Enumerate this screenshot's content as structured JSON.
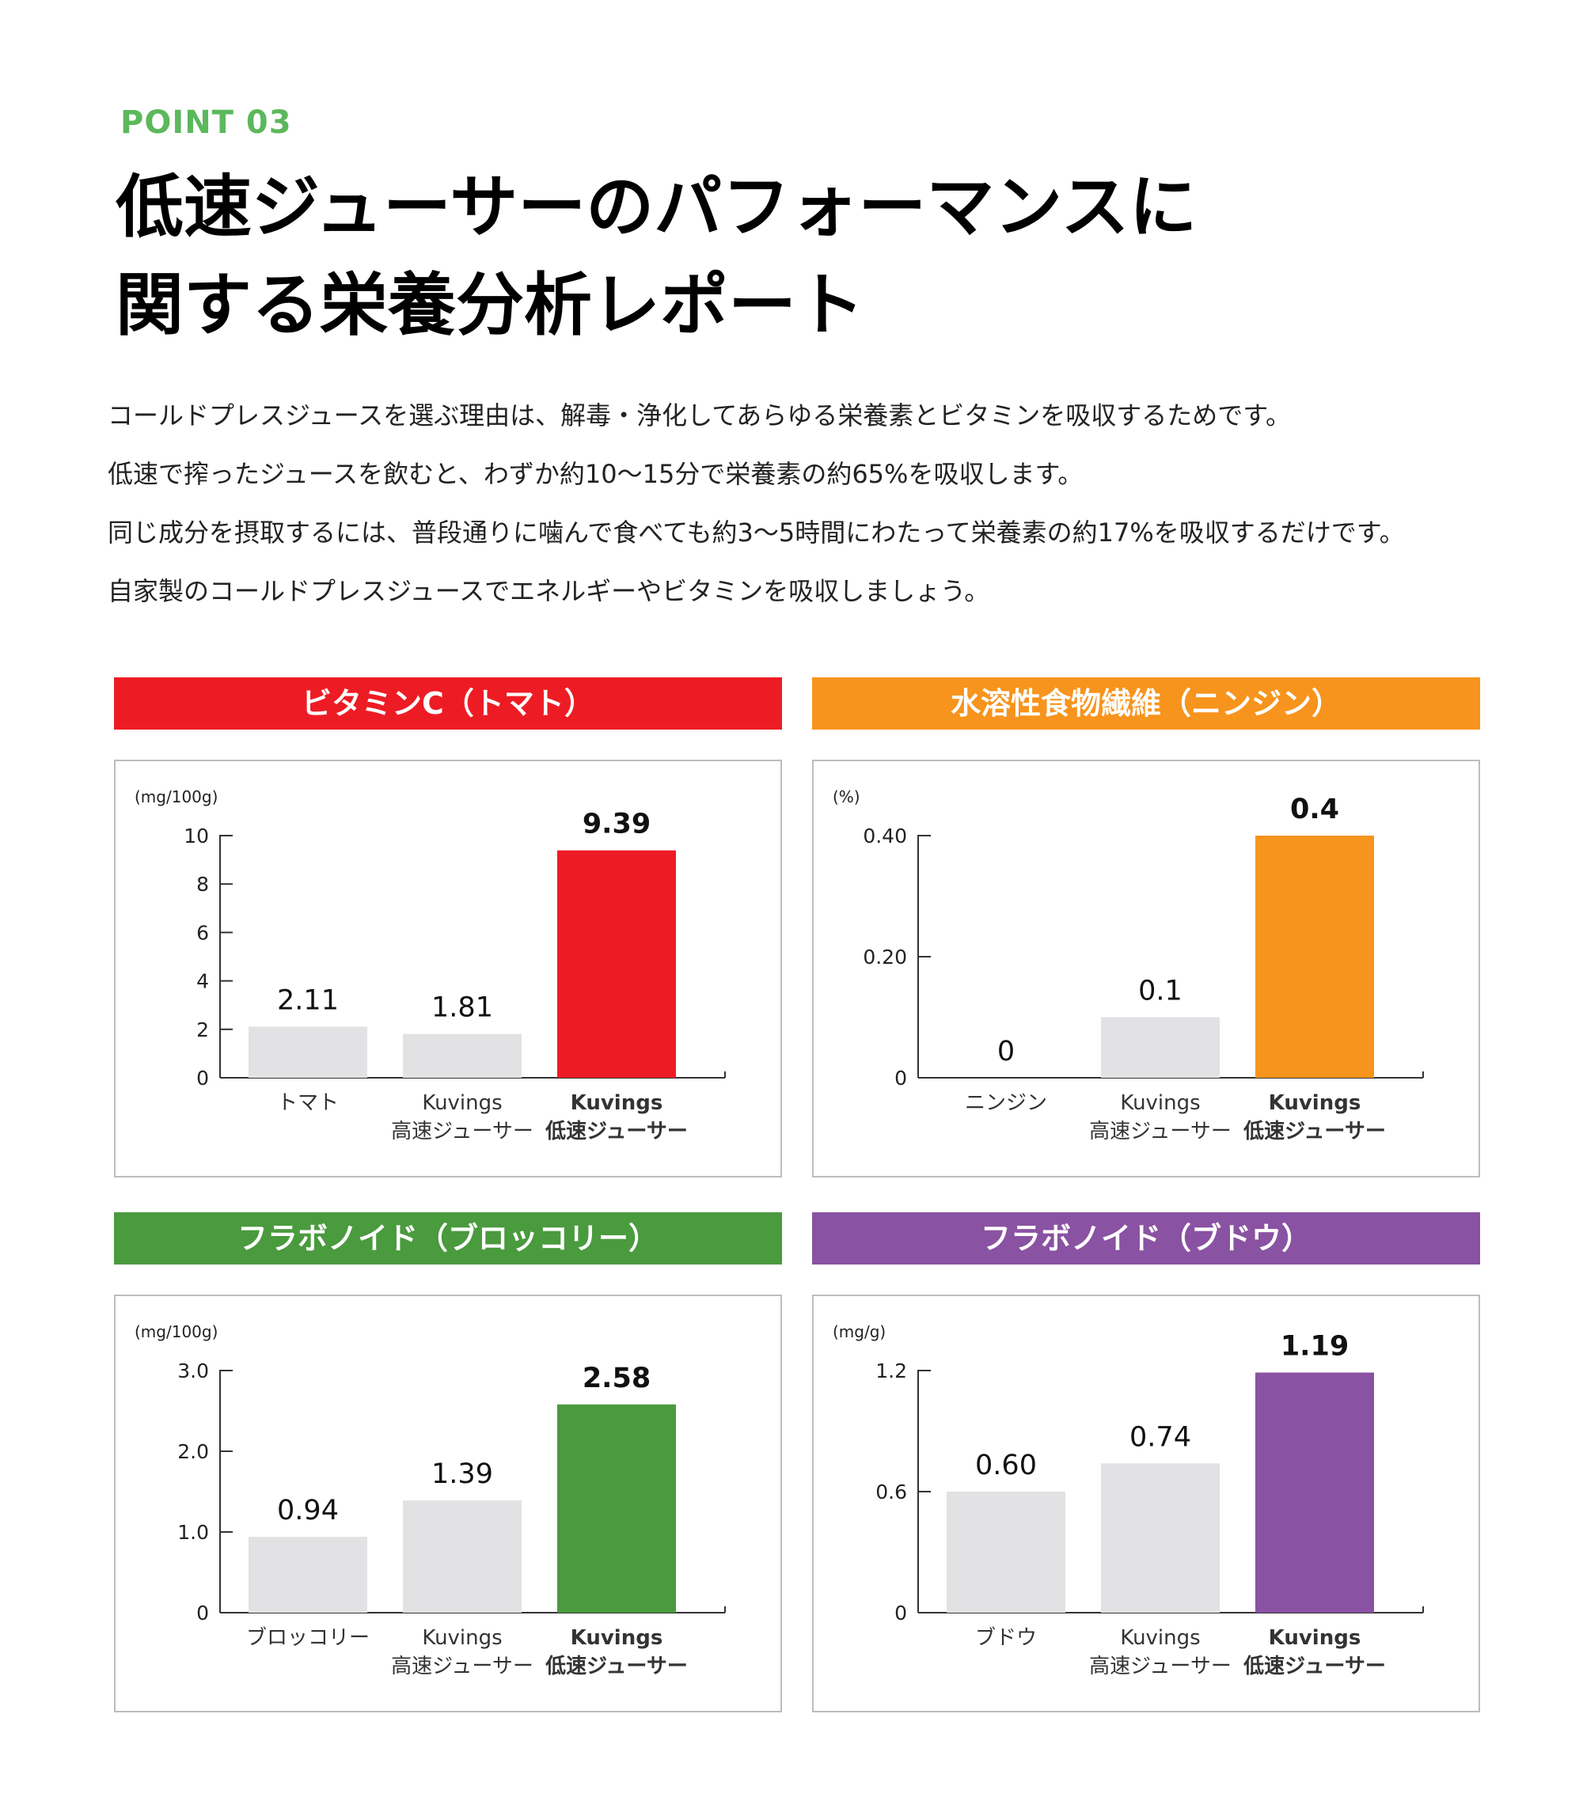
{
  "header": {
    "point": "POINT 03",
    "title_lines": [
      "低速ジューサーのパフォーマンスに",
      "関する栄養分析レポート"
    ]
  },
  "intro": [
    "コールドプレスジュースを選ぶ理由は、解毒・浄化してあらゆる栄養素とビタミンを吸収するためです。",
    "低速で搾ったジュースを飲むと、わずか約10〜15分で栄養素の約65%を吸収します。",
    "同じ成分を摂取するには、普段通りに噛んで食べても約3〜5時間にわたって栄養素の約17%を吸収するだけです。",
    "自家製のコールドプレスジュースでエネルギーやビタミンを吸収しましょう。"
  ],
  "colors": {
    "red": "#ed1c24",
    "orange": "#f7941d",
    "green": "#4a9a3e",
    "purple": "#8a52a2",
    "gray_bar": "#e2e2e4",
    "point_green": "#5cb85c"
  },
  "chart_data": [
    {
      "type": "bar",
      "title": "ビタミンC（トマト）",
      "unit": "(mg/100g)",
      "categories": [
        [
          "トマト"
        ],
        [
          "Kuvings",
          "高速ジューサー"
        ],
        [
          "Kuvings",
          "低速ジューサー"
        ]
      ],
      "values": [
        2.11,
        1.81,
        9.39
      ],
      "value_labels": [
        "2.11",
        "1.81",
        "9.39"
      ],
      "ylim": [
        0,
        10
      ],
      "ticks": [
        0,
        2,
        4,
        6,
        8,
        10
      ],
      "tick_labels": [
        "0",
        "2",
        "4",
        "6",
        "8",
        "10"
      ],
      "accent": "#ed1c24",
      "highlight_index": 2
    },
    {
      "type": "bar",
      "title": "水溶性食物繊維（ニンジン）",
      "unit": "(%)",
      "categories": [
        [
          "ニンジン"
        ],
        [
          "Kuvings",
          "高速ジューサー"
        ],
        [
          "Kuvings",
          "低速ジューサー"
        ]
      ],
      "values": [
        0,
        0.1,
        0.4
      ],
      "value_labels": [
        "0",
        "0.1",
        "0.4"
      ],
      "ylim": [
        0,
        0.4
      ],
      "ticks": [
        0,
        0.2,
        0.4
      ],
      "tick_labels": [
        "0",
        "0.20",
        "0.40"
      ],
      "accent": "#f7941d",
      "highlight_index": 2
    },
    {
      "type": "bar",
      "title": "フラボノイド（ブロッコリー）",
      "unit": "(mg/100g)",
      "categories": [
        [
          "ブロッコリー"
        ],
        [
          "Kuvings",
          "高速ジューサー"
        ],
        [
          "Kuvings",
          "低速ジューサー"
        ]
      ],
      "values": [
        0.94,
        1.39,
        2.58
      ],
      "value_labels": [
        "0.94",
        "1.39",
        "2.58"
      ],
      "ylim": [
        0,
        3
      ],
      "ticks": [
        0,
        1,
        2,
        3
      ],
      "tick_labels": [
        "0",
        "1.0",
        "2.0",
        "3.0"
      ],
      "accent": "#4a9a3e",
      "highlight_index": 2
    },
    {
      "type": "bar",
      "title": "フラボノイド（ブドウ）",
      "unit": "(mg/g)",
      "categories": [
        [
          "ブドウ"
        ],
        [
          "Kuvings",
          "高速ジューサー"
        ],
        [
          "Kuvings",
          "低速ジューサー"
        ]
      ],
      "values": [
        0.6,
        0.74,
        1.19
      ],
      "value_labels": [
        "0.60",
        "0.74",
        "1.19"
      ],
      "ylim": [
        0,
        1.2
      ],
      "ticks": [
        0,
        0.6,
        1.2
      ],
      "tick_labels": [
        "0",
        "0.6",
        "1.2"
      ],
      "accent": "#8a52a2",
      "highlight_index": 2
    }
  ]
}
